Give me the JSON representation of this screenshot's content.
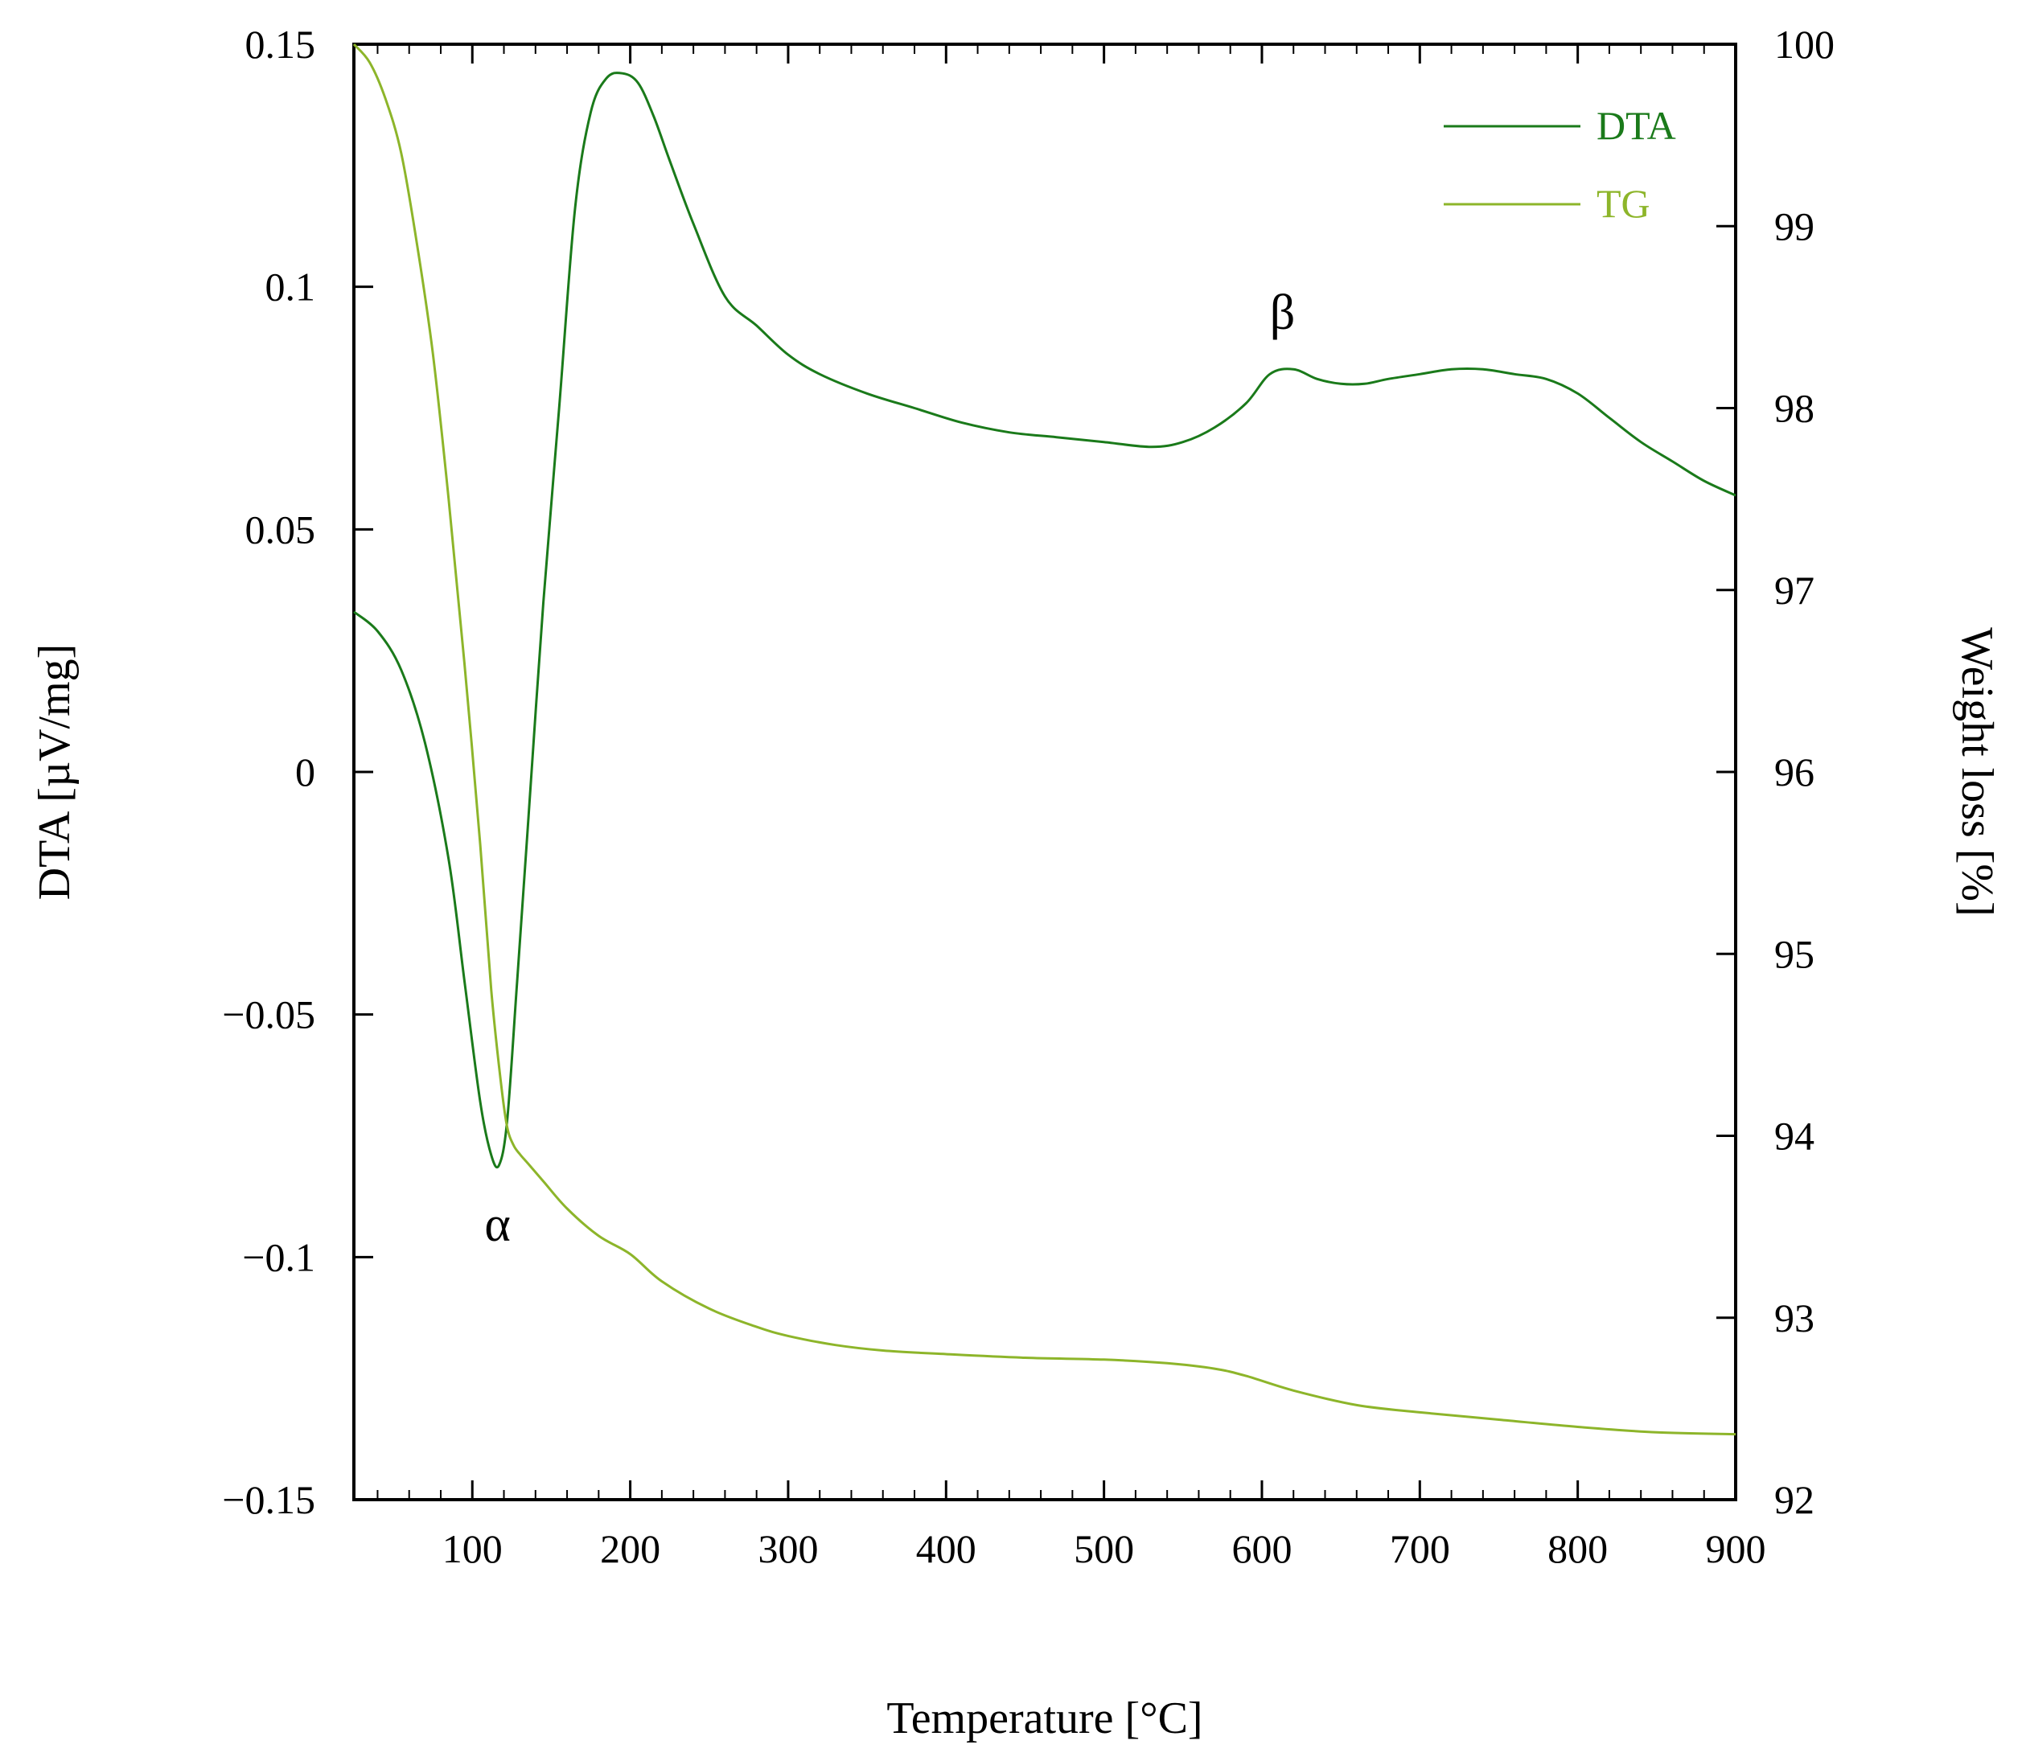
{
  "chart_data": {
    "type": "line",
    "title": "",
    "xlabel": "Temperature [°C]",
    "ylabel_left": "DTA [µV/mg]",
    "ylabel_right": "Weight loss [%]",
    "xlim": [
      25,
      900
    ],
    "ylim_left": [
      -0.15,
      0.15
    ],
    "ylim_right": [
      92,
      100
    ],
    "x_ticks": [
      100,
      200,
      300,
      400,
      500,
      600,
      700,
      800,
      900
    ],
    "x_tick_labels": [
      "100",
      "200",
      "300",
      "400",
      "500",
      "600",
      "700",
      "800",
      "900"
    ],
    "y_left_ticks": [
      -0.15,
      -0.1,
      -0.05,
      0,
      0.05,
      0.1,
      0.15
    ],
    "y_left_tick_labels": [
      "−0.15",
      "−0.1",
      "−0.05",
      "0",
      "0.05",
      "0.1",
      "0.15"
    ],
    "y_right_ticks": [
      92,
      93,
      94,
      95,
      96,
      97,
      98,
      99,
      100
    ],
    "y_right_tick_labels": [
      "92",
      "93",
      "94",
      "95",
      "96",
      "97",
      "98",
      "99",
      "100"
    ],
    "legend_position": "top-right",
    "series": [
      {
        "name": "DTA",
        "axis": "left",
        "color": "#1a7a1a",
        "x": [
          25,
          40,
          55,
          70,
          85,
          95,
          105,
          112,
          117,
          122,
          128,
          135,
          145,
          155,
          165,
          175,
          185,
          195,
          205,
          215,
          225,
          240,
          260,
          280,
          300,
          320,
          350,
          380,
          410,
          440,
          470,
          500,
          530,
          550,
          570,
          590,
          605,
          620,
          635,
          650,
          665,
          680,
          700,
          720,
          740,
          760,
          780,
          800,
          820,
          840,
          860,
          880,
          900
        ],
        "y": [
          0.033,
          0.029,
          0.021,
          0.006,
          -0.018,
          -0.043,
          -0.068,
          -0.079,
          -0.081,
          -0.072,
          -0.045,
          -0.012,
          0.035,
          0.075,
          0.116,
          0.136,
          0.143,
          0.144,
          0.142,
          0.135,
          0.126,
          0.113,
          0.098,
          0.092,
          0.086,
          0.082,
          0.078,
          0.075,
          0.072,
          0.07,
          0.069,
          0.068,
          0.067,
          0.068,
          0.071,
          0.076,
          0.082,
          0.083,
          0.081,
          0.08,
          0.08,
          0.081,
          0.082,
          0.083,
          0.083,
          0.082,
          0.081,
          0.078,
          0.073,
          0.068,
          0.064,
          0.06,
          0.057
        ]
      },
      {
        "name": "TG",
        "axis": "right",
        "color": "#8db52a",
        "x": [
          25,
          35,
          45,
          55,
          65,
          75,
          85,
          95,
          105,
          112,
          118,
          122,
          126,
          130,
          135,
          145,
          160,
          180,
          200,
          220,
          250,
          280,
          300,
          330,
          360,
          400,
          450,
          500,
          540,
          570,
          590,
          620,
          660,
          700,
          750,
          800,
          850,
          900
        ],
        "y": [
          100,
          99.9,
          99.7,
          99.4,
          98.9,
          98.3,
          97.5,
          96.6,
          95.6,
          94.8,
          94.3,
          94.05,
          93.95,
          93.9,
          93.85,
          93.75,
          93.6,
          93.45,
          93.35,
          93.2,
          93.05,
          92.95,
          92.9,
          92.85,
          92.82,
          92.8,
          92.78,
          92.77,
          92.75,
          92.72,
          92.68,
          92.6,
          92.52,
          92.48,
          92.44,
          92.4,
          92.37,
          92.36
        ]
      }
    ],
    "annotations": [
      {
        "text": "α",
        "x": 116,
        "y": -0.093,
        "axis": "left"
      },
      {
        "text": "β",
        "x": 613,
        "y": 0.095,
        "axis": "left"
      }
    ]
  }
}
